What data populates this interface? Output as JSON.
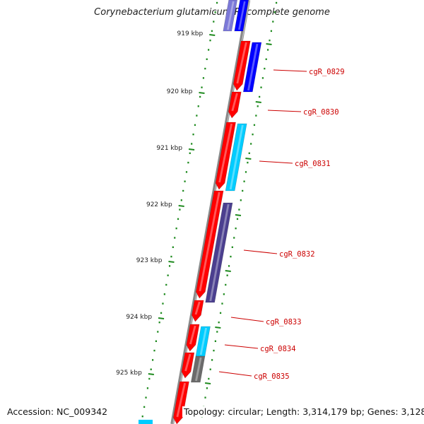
{
  "title": "Corynebacterium glutamicum R, complete genome",
  "footer": {
    "accession": "Accession: NC_009342",
    "topology": "Topology: circular; Length: 3,314,179 bp; Genes: 3,128"
  },
  "colors": {
    "backbone": "#8a8a8a",
    "tick": "#1e8a1e",
    "label": "#cc0000",
    "forward": "#ff0000",
    "cyan": "#00ccff",
    "blue": "#0000ff",
    "slate": "#4b3f8f",
    "gray": "#6b6b6b"
  },
  "scale": {
    "ticks": [
      {
        "kbp": 919,
        "label": "919 kbp"
      },
      {
        "kbp": 920,
        "label": "920 kbp"
      },
      {
        "kbp": 921,
        "label": "921 kbp"
      },
      {
        "kbp": 922,
        "label": "922 kbp"
      },
      {
        "kbp": 923,
        "label": "923 kbp"
      },
      {
        "kbp": 924,
        "label": "924 kbp"
      },
      {
        "kbp": 925,
        "label": "925 kbp"
      }
    ]
  },
  "genes": [
    {
      "label": "cgR_0829"
    },
    {
      "label": "cgR_0830"
    },
    {
      "label": "cgR_0831"
    },
    {
      "label": "cgR_0832"
    },
    {
      "label": "cgR_0833"
    },
    {
      "label": "cgR_0834"
    },
    {
      "label": "cgR_0835"
    }
  ]
}
